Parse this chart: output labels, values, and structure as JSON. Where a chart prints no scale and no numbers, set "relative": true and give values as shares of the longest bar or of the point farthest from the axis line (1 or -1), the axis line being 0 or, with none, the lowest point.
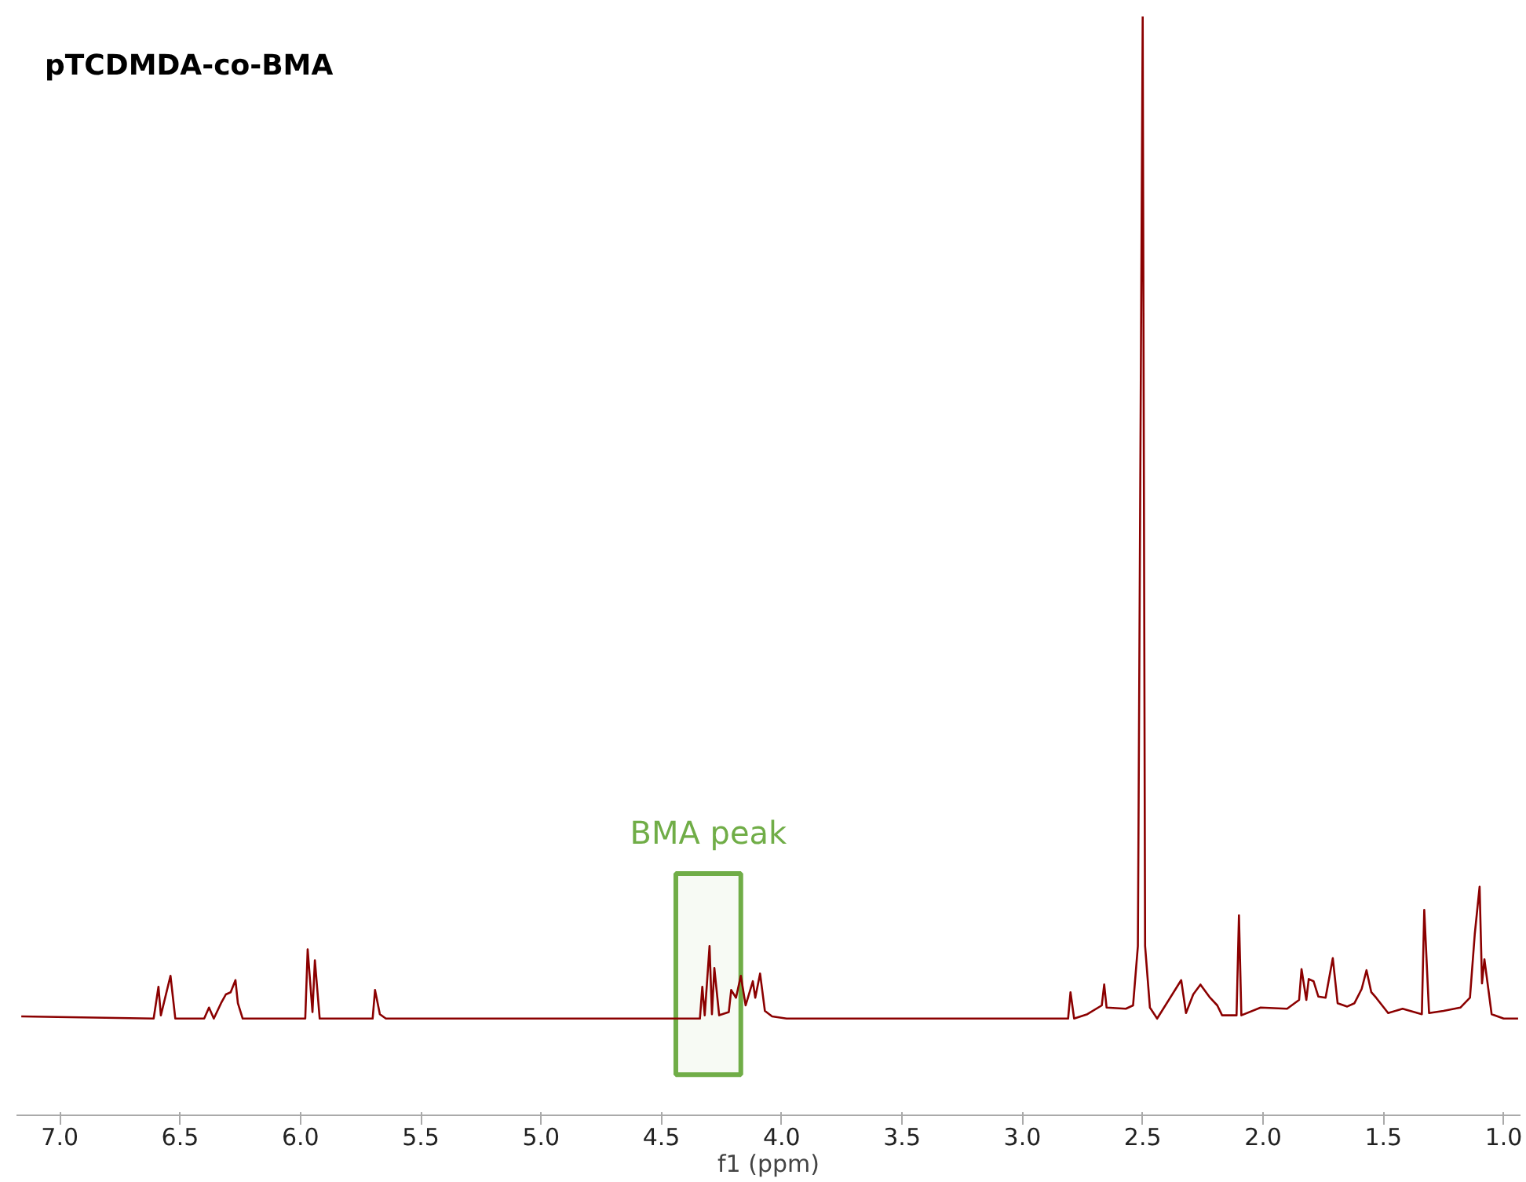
{
  "chart_data": {
    "type": "line",
    "title": "pTCDMDA-co-BMA",
    "xlabel": "f1 (ppm)",
    "relative": true,
    "grid": false,
    "xlim": [
      7.18,
      0.93
    ],
    "xticks": [
      {
        "value": 7.0,
        "label": "7.0"
      },
      6.5,
      {
        "value": 6.0,
        "label": "6.0"
      },
      5.5,
      {
        "value": 5.0,
        "label": "5.0"
      },
      4.5,
      {
        "value": 4.0,
        "label": "4.0"
      },
      3.5,
      {
        "value": 3.0,
        "label": "3.0"
      },
      2.5,
      {
        "value": 2.0,
        "label": "2.0"
      },
      1.5,
      {
        "value": 1.0,
        "label": "1.0"
      }
    ],
    "bands": [
      {
        "axis": "x",
        "from": 4.44,
        "to": 4.17,
        "label": "BMA peak",
        "color": "#70ad47"
      }
    ],
    "series": [
      {
        "color": "#8b0000",
        "x": [
          7.16,
          6.61,
          6.59,
          6.58,
          6.54,
          6.52,
          6.4,
          6.38,
          6.36,
          6.33,
          6.31,
          6.29,
          6.27,
          6.26,
          6.24,
          5.98,
          5.97,
          5.95,
          5.94,
          5.92,
          5.7,
          5.69,
          5.67,
          5.645,
          4.34,
          4.33,
          4.32,
          4.3,
          4.29,
          4.28,
          4.26,
          4.22,
          4.21,
          4.19,
          4.17,
          4.15,
          4.12,
          4.11,
          4.09,
          4.07,
          4.04,
          3.98,
          2.81,
          2.8,
          2.785,
          2.73,
          2.67,
          2.66,
          2.65,
          2.57,
          2.54,
          2.52,
          2.5,
          2.49,
          2.47,
          2.44,
          2.34,
          2.32,
          2.29,
          2.26,
          2.22,
          2.19,
          2.17,
          2.11,
          2.1,
          2.09,
          2.01,
          1.9,
          1.85,
          1.84,
          1.82,
          1.81,
          1.79,
          1.77,
          1.74,
          1.71,
          1.69,
          1.65,
          1.62,
          1.59,
          1.57,
          1.55,
          1.53,
          1.48,
          1.42,
          1.34,
          1.33,
          1.31,
          1.25,
          1.18,
          1.14,
          1.12,
          1.1,
          1.09,
          1.08,
          1.05,
          1.0,
          0.94
        ],
        "values": [
          0.09,
          0.088,
          0.117,
          0.091,
          0.127,
          0.088,
          0.088,
          0.098,
          0.088,
          0.102,
          0.11,
          0.112,
          0.123,
          0.102,
          0.088,
          0.088,
          0.151,
          0.094,
          0.141,
          0.088,
          0.088,
          0.114,
          0.092,
          0.088,
          0.088,
          0.117,
          0.091,
          0.154,
          0.092,
          0.134,
          0.091,
          0.094,
          0.114,
          0.107,
          0.127,
          0.1,
          0.122,
          0.107,
          0.129,
          0.095,
          0.09,
          0.088,
          0.088,
          0.112,
          0.088,
          0.092,
          0.1,
          0.119,
          0.098,
          0.097,
          0.1,
          0.154,
          1.0,
          0.154,
          0.098,
          0.088,
          0.123,
          0.093,
          0.11,
          0.119,
          0.107,
          0.1,
          0.091,
          0.091,
          0.182,
          0.091,
          0.098,
          0.097,
          0.105,
          0.133,
          0.105,
          0.124,
          0.122,
          0.108,
          0.107,
          0.143,
          0.102,
          0.099,
          0.102,
          0.115,
          0.132,
          0.112,
          0.107,
          0.093,
          0.097,
          0.092,
          0.187,
          0.093,
          0.095,
          0.098,
          0.107,
          0.165,
          0.208,
          0.12,
          0.142,
          0.092,
          0.088,
          0.088
        ]
      }
    ]
  }
}
